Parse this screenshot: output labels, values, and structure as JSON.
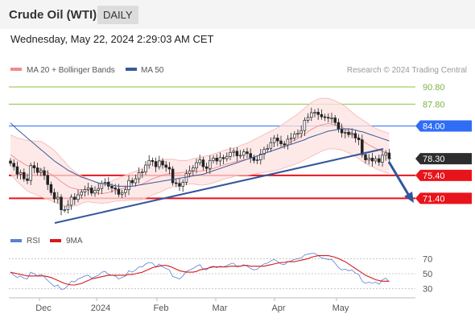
{
  "header": {
    "title": "Crude Oil (WTI)",
    "timeframe": "DAILY"
  },
  "timestamp": "Wednesday, May 22, 2024 2:29:03 AM CET",
  "legend": {
    "bollinger": "MA 20 + Bollinger Bands",
    "ma50": "MA 50",
    "credit": "Research © 2024 Trading Central"
  },
  "rsi_legend": {
    "rsi": "RSI",
    "ma": "9MA"
  },
  "colors": {
    "bollinger": "#f08c8c",
    "band_fill": "#fde2e2",
    "ma50": "#3b5a9a",
    "support": "#e8141b",
    "resistance": "#2f6df6",
    "target": "#8cc63f",
    "current": "#2d2d2d",
    "trend": "#34559c",
    "rsi": "#5b7fd6",
    "rsi_ma": "#d61a1a"
  },
  "chart_data": [
    {
      "type": "candlestick",
      "title": "Crude Oil (WTI)",
      "x_labels": [
        "Dec",
        "2024",
        "Feb",
        "Mar",
        "Apr",
        "May"
      ],
      "ylim": [
        66.4,
        92.2
      ],
      "current_price": "78.30",
      "levels": [
        {
          "value": 90.8,
          "label": "90.80",
          "kind": "target"
        },
        {
          "value": 87.8,
          "label": "87.80",
          "kind": "target"
        },
        {
          "value": 84.0,
          "label": "84.00",
          "kind": "resistance"
        },
        {
          "value": 78.3,
          "label": "78.30",
          "kind": "current"
        },
        {
          "value": 75.4,
          "label": "75.40",
          "kind": "support"
        },
        {
          "value": 71.4,
          "label": "71.40",
          "kind": "support"
        }
      ],
      "closes": [
        77.5,
        76.9,
        75.6,
        75.9,
        74.8,
        74.5,
        77.1,
        76.7,
        75.9,
        76.2,
        75.4,
        73.8,
        72.4,
        71.3,
        71.6,
        69.4,
        69.4,
        70.2,
        71.6,
        71.2,
        72.0,
        72.5,
        72.9,
        73.2,
        72.3,
        72.8,
        73.1,
        74.0,
        74.2,
        73.5,
        73.2,
        73.0,
        72.1,
        72.4,
        72.9,
        74.5,
        74.1,
        74.8,
        75.9,
        76.0,
        77.2,
        78.0,
        77.8,
        76.9,
        77.9,
        77.2,
        76.8,
        76.5,
        74.1,
        74.0,
        73.5,
        74.2,
        75.7,
        76.2,
        76.7,
        77.6,
        78.1,
        76.9,
        76.6,
        78.0,
        78.4,
        77.9,
        78.5,
        78.3,
        78.7,
        79.4,
        79.6,
        78.8,
        78.9,
        79.5,
        79.2,
        78.5,
        78.0,
        78.1,
        79.1,
        79.9,
        80.1,
        81.1,
        81.9,
        81.4,
        80.9,
        80.7,
        81.7,
        81.9,
        82.6,
        82.7,
        83.2,
        85.0,
        85.5,
        86.3,
        86.4,
        86.0,
        85.6,
        85.5,
        85.4,
        85.4,
        84.6,
        83.5,
        82.8,
        82.9,
        82.5,
        82.7,
        81.9,
        81.6,
        79.0,
        78.1,
        78.4,
        77.9,
        78.3,
        77.7,
        78.9,
        79.3,
        78.3
      ],
      "ma20": [
        79.0,
        78.6,
        78.1,
        77.8,
        77.4,
        77.1,
        76.9,
        76.8,
        76.6,
        76.5,
        76.2,
        75.9,
        75.6,
        75.2,
        74.8,
        74.3,
        73.9,
        73.5,
        73.2,
        73.1,
        72.9,
        72.9,
        72.9,
        72.8,
        72.6,
        72.4,
        72.3,
        72.2,
        72.3,
        72.4,
        72.6,
        72.8,
        72.9,
        73.1,
        73.2,
        73.4,
        73.5,
        73.6,
        73.7,
        73.9,
        74.2,
        74.5,
        74.8,
        75.0,
        75.2,
        75.4,
        75.6,
        75.7,
        75.8,
        75.8,
        75.8,
        75.9,
        75.9,
        76.0,
        76.1,
        76.1,
        76.1,
        76.2,
        76.3,
        76.4,
        76.6,
        76.8,
        77.0,
        77.2,
        77.4,
        77.5,
        77.7,
        77.8,
        78.0,
        78.1,
        78.2,
        78.4,
        78.6,
        78.8,
        79.0,
        79.2,
        79.4,
        79.6,
        79.8,
        80.0,
        80.3,
        80.6,
        80.9,
        81.2,
        81.5,
        81.8,
        82.2,
        82.6,
        83.0,
        83.4,
        83.7,
        84.0,
        84.2,
        84.3,
        84.4,
        84.3,
        84.2,
        84.0,
        83.8,
        83.5,
        83.1,
        82.7,
        82.3,
        81.9,
        81.5,
        81.1,
        80.7,
        80.4,
        80.1,
        79.8,
        79.6,
        79.4,
        79.2
      ],
      "ma50": [
        84.5,
        84.0,
        83.4,
        82.9,
        82.4,
        81.9,
        81.4,
        80.9,
        80.4,
        79.9,
        79.4,
        78.9,
        78.4,
        77.9,
        77.5,
        77.1,
        76.7,
        76.3,
        76.0,
        75.7,
        75.4,
        75.1,
        74.9,
        74.7,
        74.5,
        74.3,
        74.1,
        74.0,
        73.9,
        73.8,
        73.7,
        73.6,
        73.5,
        73.5,
        73.5,
        73.5,
        73.5,
        73.6,
        73.7,
        73.8,
        73.9,
        74.0,
        74.1,
        74.2,
        74.3,
        74.4,
        74.5,
        74.6,
        74.7,
        74.8,
        74.9,
        75.0,
        75.1,
        75.2,
        75.3,
        75.4,
        75.5,
        75.6,
        75.8,
        76.0,
        76.2,
        76.4,
        76.6,
        76.8,
        77.0,
        77.2,
        77.4,
        77.6,
        77.8,
        78.0,
        78.2,
        78.4,
        78.6,
        78.8,
        79.0,
        79.2,
        79.4,
        79.6,
        79.8,
        80.0,
        80.2,
        80.4,
        80.6,
        80.8,
        81.0,
        81.2,
        81.4,
        81.6,
        81.9,
        82.1,
        82.3,
        82.5,
        82.7,
        82.9,
        83.1,
        83.2,
        83.3,
        83.4,
        83.5,
        83.5,
        83.5,
        83.4,
        83.3,
        83.1,
        83.0,
        82.8,
        82.6,
        82.4,
        82.2,
        82.0,
        81.8,
        81.6,
        81.4
      ],
      "band_width": [
        3.4,
        3.6,
        3.8,
        4.0,
        4.2,
        4.4,
        4.5,
        4.6,
        4.7,
        4.8,
        4.8,
        4.7,
        4.6,
        4.5,
        4.3,
        4.1,
        3.9,
        3.6,
        3.3,
        3.0,
        2.7,
        2.4,
        2.2,
        2.0,
        1.9,
        1.8,
        1.7,
        1.7,
        1.7,
        1.8,
        1.8,
        1.9,
        2.0,
        2.1,
        2.2,
        2.3,
        2.4,
        2.5,
        2.6,
        2.7,
        2.8,
        2.8,
        2.8,
        2.8,
        2.8,
        2.7,
        2.6,
        2.5,
        2.4,
        2.3,
        2.2,
        2.1,
        2.1,
        2.1,
        2.2,
        2.3,
        2.4,
        2.5,
        2.5,
        2.5,
        2.5,
        2.5,
        2.5,
        2.5,
        2.5,
        2.5,
        2.5,
        2.5,
        2.6,
        2.7,
        2.8,
        2.9,
        3.0,
        3.1,
        3.2,
        3.3,
        3.4,
        3.5,
        3.6,
        3.7,
        3.8,
        3.9,
        4.0,
        4.1,
        4.2,
        4.3,
        4.4,
        4.5,
        4.6,
        4.7,
        4.7,
        4.7,
        4.6,
        4.5,
        4.4,
        4.3,
        4.2,
        4.1,
        4.0,
        3.9,
        3.8,
        3.7,
        3.6,
        3.6,
        3.6,
        3.6,
        3.6,
        3.5,
        3.5,
        3.5,
        3.5,
        3.5,
        3.5
      ]
    },
    {
      "type": "line",
      "title": "RSI",
      "yticks": [
        "70",
        "50",
        "30"
      ],
      "ylim": [
        20,
        80
      ],
      "series": [
        {
          "name": "RSI",
          "values": [
            52,
            48,
            45,
            47,
            44,
            43,
            52,
            50,
            47,
            49,
            46,
            41,
            37,
            33,
            35,
            29,
            30,
            34,
            40,
            39,
            43,
            45,
            47,
            48,
            44,
            46,
            48,
            52,
            53,
            49,
            48,
            47,
            43,
            45,
            47,
            54,
            52,
            55,
            59,
            59,
            63,
            65,
            64,
            59,
            63,
            59,
            57,
            55,
            46,
            45,
            43,
            47,
            53,
            55,
            57,
            60,
            62,
            56,
            55,
            59,
            60,
            58,
            60,
            59,
            61,
            63,
            64,
            59,
            60,
            62,
            60,
            57,
            55,
            56,
            60,
            63,
            64,
            67,
            69,
            66,
            63,
            62,
            66,
            67,
            69,
            70,
            71,
            75,
            76,
            77,
            77,
            74,
            71,
            70,
            69,
            69,
            64,
            58,
            55,
            56,
            54,
            55,
            51,
            49,
            40,
            37,
            39,
            37,
            39,
            36,
            42,
            44,
            39
          ]
        },
        {
          "name": "9MA",
          "values": [
            52,
            51,
            50,
            49,
            48,
            47,
            47,
            47,
            47,
            47,
            47,
            46,
            45,
            43,
            41,
            39,
            37,
            36,
            35,
            35,
            36,
            37,
            39,
            41,
            43,
            44,
            45,
            46,
            47,
            48,
            48,
            48,
            48,
            48,
            48,
            49,
            49,
            50,
            51,
            52,
            54,
            56,
            58,
            59,
            60,
            61,
            61,
            60,
            58,
            56,
            54,
            53,
            52,
            52,
            52,
            53,
            55,
            56,
            57,
            58,
            59,
            59,
            59,
            59,
            59,
            60,
            60,
            60,
            60,
            61,
            61,
            60,
            60,
            60,
            60,
            60,
            61,
            62,
            63,
            64,
            65,
            65,
            66,
            66,
            66,
            67,
            68,
            69,
            70,
            72,
            73,
            74,
            74,
            74,
            74,
            73,
            72,
            70,
            68,
            66,
            63,
            60,
            57,
            54,
            51,
            48,
            46,
            44,
            42,
            41,
            40,
            40,
            40
          ]
        }
      ]
    }
  ]
}
